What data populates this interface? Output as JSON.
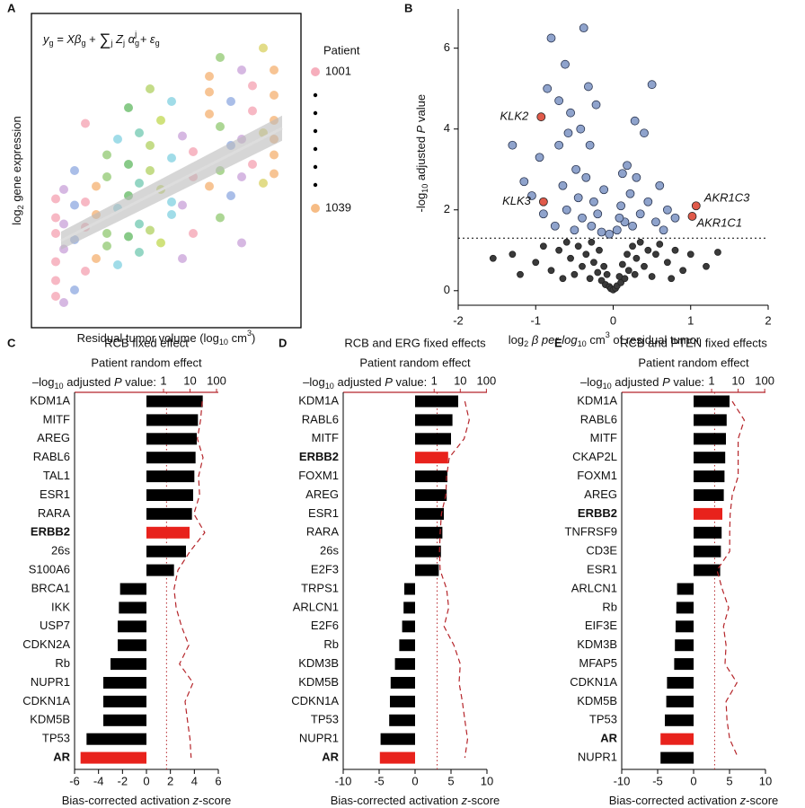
{
  "chart_data": [
    {
      "type": "scatter",
      "panel": "A",
      "formula": [
        "y",
        "g",
        " = Xβ",
        "g",
        " + ",
        "∑",
        "j",
        " Z",
        "j",
        " α",
        "g",
        "j",
        " + ε",
        "g"
      ],
      "xlabel": [
        "Residual tumor volume (log",
        "10",
        " cm",
        "3",
        ")"
      ],
      "ylabel": [
        "log",
        "2",
        " gene expression"
      ],
      "legend_title": "Patient",
      "legend": [
        {
          "label": "1001",
          "color": "#f4a0b0"
        },
        {
          "label": "1039",
          "color": "#f4b070"
        }
      ],
      "xlim": [
        0,
        10
      ],
      "ylim": [
        0,
        10
      ],
      "fit": {
        "x": [
          1.1,
          9.3
        ],
        "y": [
          2.77,
          6.35
        ]
      },
      "groups": [
        {
          "x": 0.9,
          "color": "#f4a0b0",
          "y": [
            1.0,
            1.5,
            2.1,
            3.0,
            4.1,
            3.5
          ]
        },
        {
          "x": 1.2,
          "color": "#c8a0d8",
          "y": [
            0.8,
            2.5,
            3.3,
            4.4
          ]
        },
        {
          "x": 1.6,
          "color": "#8ea8e0",
          "y": [
            1.2,
            2.8,
            3.9,
            5.0
          ]
        },
        {
          "x": 2.0,
          "color": "#f4a0b0",
          "y": [
            1.8,
            3.2,
            4.0,
            6.5
          ]
        },
        {
          "x": 2.4,
          "color": "#f4b070",
          "y": [
            2.2,
            3.6,
            4.5
          ]
        },
        {
          "x": 2.8,
          "color": "#90c870",
          "y": [
            2.6,
            4.8,
            5.5,
            3.0
          ]
        },
        {
          "x": 3.2,
          "color": "#80d0e0",
          "y": [
            2.0,
            3.8,
            6.0
          ]
        },
        {
          "x": 3.6,
          "color": "#60b860",
          "y": [
            2.9,
            4.2,
            5.2,
            7.0
          ]
        },
        {
          "x": 4.0,
          "color": "#70c8b0",
          "y": [
            3.3,
            4.6,
            6.2,
            2.4
          ]
        },
        {
          "x": 4.4,
          "color": "#b0d060",
          "y": [
            3.1,
            5.0,
            5.8,
            7.6
          ]
        },
        {
          "x": 4.8,
          "color": "#c0d850",
          "y": [
            2.7,
            4.4,
            6.6
          ]
        },
        {
          "x": 5.2,
          "color": "#80d0e0",
          "y": [
            3.6,
            5.4,
            4.0,
            7.2
          ]
        },
        {
          "x": 5.6,
          "color": "#c8a0d8",
          "y": [
            2.2,
            3.9,
            6.1
          ]
        },
        {
          "x": 6.0,
          "color": "#f4a0b0",
          "y": [
            3.0,
            4.8,
            5.6
          ]
        },
        {
          "x": 6.6,
          "color": "#f4b070",
          "y": [
            4.5,
            6.8,
            8.0,
            7.5
          ]
        },
        {
          "x": 7.0,
          "color": "#90c870",
          "y": [
            5.0,
            6.4,
            8.6,
            3.5
          ]
        },
        {
          "x": 7.4,
          "color": "#8ea8e0",
          "y": [
            4.2,
            5.8,
            7.2
          ]
        },
        {
          "x": 7.8,
          "color": "#c8a0d8",
          "y": [
            4.8,
            6.0,
            8.2,
            2.7
          ]
        },
        {
          "x": 8.2,
          "color": "#f4a0b0",
          "y": [
            5.2,
            6.9,
            7.7
          ]
        },
        {
          "x": 8.6,
          "color": "#d8d060",
          "y": [
            6.2,
            8.9,
            4.6
          ]
        },
        {
          "x": 9.0,
          "color": "#f4b070",
          "y": [
            5.5,
            6.6,
            7.4,
            8.2,
            4.9,
            6.0
          ]
        }
      ]
    },
    {
      "type": "scatter",
      "panel": "B",
      "xlabel": [
        "log",
        "2",
        " β per log",
        "10",
        " cm",
        "3",
        " of residual tumor"
      ],
      "ylabel": [
        "-log",
        "10",
        " adjusted ",
        "P",
        " value"
      ],
      "xlim": [
        -2,
        2
      ],
      "ylim": [
        -0.36,
        6.97
      ],
      "xticks": [
        -2,
        -1,
        0,
        1,
        2
      ],
      "yticks": [
        0,
        2,
        4,
        6
      ],
      "hline": 1.3,
      "groups": [
        {
          "color": "#3a3a3a",
          "x": [
            -1.0,
            -0.9,
            -0.8,
            -0.7,
            -0.65,
            -0.6,
            -0.55,
            -0.5,
            -0.45,
            -0.4,
            -0.35,
            -0.3,
            -0.28,
            -0.25,
            -0.2,
            -0.18,
            -0.15,
            -0.12,
            -0.1,
            -0.08,
            -0.05,
            -0.03,
            0,
            0.03,
            0.05,
            0.08,
            0.1,
            0.12,
            0.15,
            0.18,
            0.2,
            0.25,
            0.28,
            0.3,
            0.35,
            0.4,
            0.45,
            0.5,
            0.55,
            0.6,
            0.7,
            0.8,
            0.9,
            1.0,
            1.2,
            1.35,
            -1.3,
            -1.55,
            -1.2,
            0.75
          ],
          "y": [
            0.7,
            1.1,
            0.5,
            1.0,
            0.3,
            1.2,
            0.8,
            0.4,
            1.1,
            0.6,
            0.9,
            0.3,
            1.2,
            0.7,
            0.45,
            1.0,
            0.25,
            0.6,
            0.15,
            0.4,
            0.1,
            0.05,
            0.02,
            0.06,
            0.12,
            0.35,
            0.2,
            0.65,
            0.3,
            0.9,
            0.5,
            1.1,
            0.4,
            0.8,
            1.2,
            0.6,
            1.0,
            0.35,
            0.9,
            1.15,
            0.7,
            1.0,
            0.5,
            0.9,
            0.6,
            0.95,
            0.9,
            0.8,
            0.4,
            0.3
          ]
        },
        {
          "color": "#8fa3cc",
          "x": [
            -1.05,
            -0.95,
            -0.9,
            -0.85,
            -0.8,
            -0.75,
            -0.7,
            -0.65,
            -0.62,
            -0.6,
            -0.55,
            -0.5,
            -0.48,
            -0.45,
            -0.42,
            -0.4,
            -0.38,
            -0.35,
            -0.3,
            -0.28,
            -0.25,
            -0.22,
            -0.2,
            -0.15,
            -0.12,
            -0.05,
            0.05,
            0.1,
            0.15,
            0.18,
            0.22,
            0.25,
            0.3,
            0.35,
            0.4,
            0.45,
            0.5,
            0.55,
            0.6,
            0.65,
            0.7,
            0.8,
            -1.15,
            -1.3,
            -0.58,
            0.28,
            0.12,
            -0.32,
            0.08,
            -0.7
          ],
          "y": [
            2.35,
            3.3,
            1.9,
            5.0,
            6.25,
            1.6,
            3.6,
            2.6,
            5.6,
            2.0,
            4.4,
            1.5,
            3.0,
            2.3,
            4.0,
            1.8,
            6.5,
            2.8,
            3.6,
            1.6,
            2.2,
            4.6,
            1.9,
            1.45,
            2.5,
            1.4,
            1.5,
            2.1,
            1.7,
            3.1,
            2.4,
            1.6,
            2.8,
            1.9,
            3.9,
            2.2,
            5.1,
            1.7,
            2.6,
            1.5,
            2.0,
            1.8,
            2.7,
            3.6,
            3.9,
            4.2,
            2.9,
            5.05,
            1.8,
            4.7
          ]
        },
        {
          "color": "#e05a4a",
          "labels": [
            "KLK2",
            "KLK3",
            "AKR1C3",
            "AKR1C1"
          ],
          "x": [
            -0.93,
            -0.9,
            1.07,
            1.02
          ],
          "y": [
            4.3,
            2.2,
            2.1,
            1.84
          ]
        }
      ]
    },
    {
      "type": "bar",
      "panel": "C",
      "title": [
        "RCB fixed effect",
        "Patient random effect"
      ],
      "categories": [
        "KDM1A",
        "MITF",
        "AREG",
        "RABL6",
        "TAL1",
        "ESR1",
        "RARA",
        "ERBB2",
        "26s",
        "S100A6",
        "BRCA1",
        "IKK",
        "USP7",
        "CDKN2A",
        "Rb",
        "NUPR1",
        "CDKN1A",
        "KDM5B",
        "TP53",
        "AR"
      ],
      "values": [
        4.7,
        4.3,
        4.2,
        4.1,
        4.0,
        3.9,
        3.8,
        3.6,
        3.3,
        2.3,
        -2.2,
        -2.3,
        -2.4,
        -2.4,
        -3.0,
        -3.6,
        -3.6,
        -3.6,
        -5.0,
        -5.5
      ],
      "color": "#000000",
      "highlight": [
        7,
        19
      ],
      "highlight_color": "#e8221c",
      "xlim": [
        -6,
        6
      ],
      "xticks": [
        -6,
        -4,
        -2,
        0,
        2,
        4,
        6
      ],
      "xlabel": [
        "Bias-corrected activation ",
        "z",
        "-score"
      ],
      "x2label": [
        "–log",
        "10",
        " adjusted ",
        "P",
        " value:"
      ],
      "x2lim": [
        0.00044,
        117
      ],
      "x2ticks": [
        1,
        10,
        100
      ],
      "x2log": true,
      "x2color": "#b5252a",
      "threshold": 1.3,
      "line_values": [
        29,
        25,
        19,
        31,
        21,
        23,
        14,
        36,
        10,
        3.5,
        2.5,
        3,
        4.8,
        9,
        4,
        13,
        6.5,
        8,
        10,
        11
      ]
    },
    {
      "type": "bar",
      "panel": "D",
      "title": [
        "RCB and ERG fixed effects",
        "Patient random effect"
      ],
      "categories": [
        "KDM1A",
        "RABL6",
        "MITF",
        "ERBB2",
        "FOXM1",
        "AREG",
        "ESR1",
        "RARA",
        "26s",
        "E2F3",
        "TRPS1",
        "ARLCN1",
        "E2F6",
        "Rb",
        "KDM3B",
        "KDM5B",
        "CDKN1A",
        "TP53",
        "NUPR1",
        "AR"
      ],
      "values": [
        6.0,
        5.2,
        5.0,
        4.6,
        4.5,
        4.4,
        4.0,
        3.8,
        3.6,
        3.3,
        -1.5,
        -1.6,
        -1.8,
        -2.2,
        -2.8,
        -3.4,
        -3.5,
        -3.6,
        -4.8,
        -4.9
      ],
      "color": "#000000",
      "highlight": [
        3,
        19
      ],
      "highlight_color": "#e8221c",
      "xlim": [
        -10,
        10
      ],
      "xticks": [
        -10,
        -5,
        0,
        5,
        10
      ],
      "xlabel": [
        "Bias-corrected activation ",
        "z",
        "-score"
      ],
      "x2label": [
        "–log",
        "10",
        " adjusted ",
        "P",
        " value:"
      ],
      "x2lim": [
        0.00033,
        105
      ],
      "x2ticks": [
        1,
        10,
        100
      ],
      "x2log": true,
      "x2color": "#b5252a",
      "threshold": 1.3,
      "line_values": [
        15,
        22,
        14,
        3.8,
        3,
        2.8,
        1.9,
        1.7,
        1.6,
        1.7,
        3,
        3.6,
        2.4,
        5.7,
        10,
        9,
        12,
        15,
        19,
        15
      ]
    },
    {
      "type": "bar",
      "panel": "E",
      "title": [
        "RCB and PTEN fixed effects",
        "Patient random effect"
      ],
      "categories": [
        "KDM1A",
        "RABL6",
        "MITF",
        "CKAP2L",
        "FOXM1",
        "AREG",
        "ERBB2",
        "TNFRSF9",
        "CD3E",
        "ESR1",
        "ARLCN1",
        "Rb",
        "EIF3E",
        "KDM3B",
        "MFAP5",
        "CDKN1A",
        "KDM5B",
        "TP53",
        "AR",
        "NUPR1"
      ],
      "values": [
        5.0,
        4.6,
        4.5,
        4.4,
        4.3,
        4.2,
        4.0,
        3.9,
        3.8,
        3.7,
        -2.3,
        -2.4,
        -2.5,
        -2.6,
        -2.7,
        -3.7,
        -3.8,
        -4.0,
        -4.6,
        -4.6
      ],
      "color": "#000000",
      "highlight": [
        6,
        18
      ],
      "highlight_color": "#e8221c",
      "xlim": [
        -10,
        10
      ],
      "xticks": [
        -10,
        -5,
        0,
        5,
        10
      ],
      "xlabel": [
        "Bias-corrected activation ",
        "z",
        "-score"
      ],
      "x2label": [
        "–log",
        "10",
        " adjusted ",
        "P",
        " value:"
      ],
      "x2lim": [
        0.00041,
        107
      ],
      "x2ticks": [
        1,
        10,
        100
      ],
      "x2log": true,
      "x2color": "#b5252a",
      "threshold": 1.3,
      "line_values": [
        6,
        17,
        10,
        10,
        10,
        6,
        5,
        4.8,
        4.8,
        1.6,
        2.5,
        4.4,
        2.8,
        3.5,
        3.2,
        9,
        3.5,
        3.8,
        4.8,
        10
      ]
    }
  ]
}
